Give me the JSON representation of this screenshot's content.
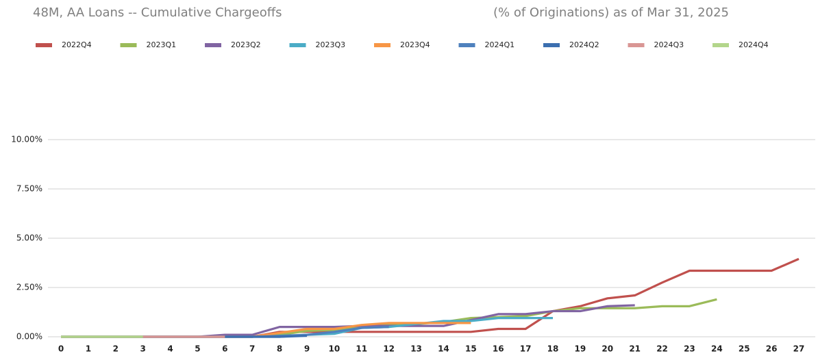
{
  "chart_data": {
    "type": "line",
    "title": "48M, AA Loans -- Cumulative Chargeoffs",
    "subtitle": "(% of Originations) as of Mar 31, 2025",
    "x": [
      0,
      1,
      2,
      3,
      4,
      5,
      6,
      7,
      8,
      9,
      10,
      11,
      12,
      13,
      14,
      15,
      16,
      17,
      18,
      19,
      20,
      21,
      22,
      23,
      24,
      25,
      26,
      27
    ],
    "xlim": [
      0,
      27
    ],
    "ylim": [
      0,
      10
    ],
    "yticks": [
      {
        "value": 0,
        "label": "0.00%"
      },
      {
        "value": 2.5,
        "label": "2.50%"
      },
      {
        "value": 5,
        "label": "5.00%"
      },
      {
        "value": 7.5,
        "label": "7.50%"
      },
      {
        "value": 10,
        "label": "10.00%"
      }
    ],
    "grid": true,
    "legend": "top",
    "series": [
      {
        "name": "2022Q4",
        "color": "#c0504d",
        "values": [
          0,
          0,
          0,
          0,
          0,
          0,
          0,
          0,
          0.25,
          0.25,
          0.25,
          0.25,
          0.25,
          0.25,
          0.25,
          0.25,
          0.4,
          0.4,
          1.3,
          1.55,
          1.95,
          2.1,
          2.75,
          3.35,
          3.35,
          3.35,
          3.35,
          3.95
        ]
      },
      {
        "name": "2023Q1",
        "color": "#9bbb59",
        "values": [
          0,
          0,
          0,
          0,
          0,
          0,
          0,
          0,
          0.1,
          0.3,
          0.35,
          0.55,
          0.6,
          0.65,
          0.75,
          0.95,
          1.0,
          1.05,
          1.3,
          1.45,
          1.45,
          1.45,
          1.55,
          1.55,
          1.9,
          null,
          null,
          null
        ]
      },
      {
        "name": "2023Q2",
        "color": "#8064a2",
        "values": [
          0,
          0,
          0,
          0,
          0,
          0,
          0.1,
          0.1,
          0.5,
          0.5,
          0.5,
          0.55,
          0.55,
          0.55,
          0.55,
          0.85,
          1.15,
          1.15,
          1.3,
          1.3,
          1.55,
          1.6,
          null,
          null,
          null,
          null,
          null,
          null
        ]
      },
      {
        "name": "2023Q3",
        "color": "#4bacc6",
        "values": [
          0,
          0,
          0,
          0,
          0,
          0,
          0,
          0,
          0,
          0.1,
          0.15,
          0.45,
          0.5,
          0.65,
          0.8,
          0.8,
          0.95,
          0.95,
          0.95,
          null,
          null,
          null,
          null,
          null,
          null,
          null,
          null,
          null
        ]
      },
      {
        "name": "2023Q4",
        "color": "#f79646",
        "values": [
          0,
          0,
          0,
          0,
          0,
          0,
          0,
          0,
          0.2,
          0.4,
          0.4,
          0.6,
          0.7,
          0.7,
          0.7,
          0.7,
          null,
          null,
          null,
          null,
          null,
          null,
          null,
          null,
          null,
          null,
          null,
          null
        ]
      },
      {
        "name": "2024Q1",
        "color": "#4f81bd",
        "values": [
          0,
          0,
          0,
          0,
          0,
          0,
          0,
          0,
          0.05,
          0.1,
          0.25,
          0.45,
          0.5,
          null,
          null,
          null,
          null,
          null,
          null,
          null,
          null,
          null,
          null,
          null,
          null,
          null,
          null,
          null
        ]
      },
      {
        "name": "2024Q2",
        "color": "#3c6fb0",
        "values": [
          0,
          0,
          0,
          0,
          0,
          0,
          0,
          0,
          0,
          0.05,
          null,
          null,
          null,
          null,
          null,
          null,
          null,
          null,
          null,
          null,
          null,
          null,
          null,
          null,
          null,
          null,
          null,
          null
        ]
      },
      {
        "name": "2024Q3",
        "color": "#d99694",
        "values": [
          0,
          0,
          0,
          0,
          0,
          0,
          0,
          null,
          null,
          null,
          null,
          null,
          null,
          null,
          null,
          null,
          null,
          null,
          null,
          null,
          null,
          null,
          null,
          null,
          null,
          null,
          null,
          null
        ]
      },
      {
        "name": "2024Q4",
        "color": "#b3d68b",
        "values": [
          0,
          0,
          0,
          0,
          null,
          null,
          null,
          null,
          null,
          null,
          null,
          null,
          null,
          null,
          null,
          null,
          null,
          null,
          null,
          null,
          null,
          null,
          null,
          null,
          null,
          null,
          null,
          null
        ]
      }
    ]
  }
}
